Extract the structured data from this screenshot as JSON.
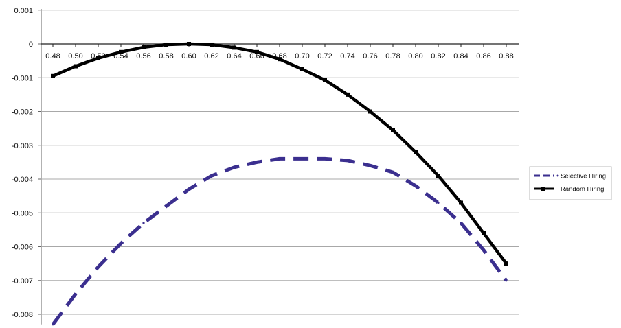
{
  "chart_data": {
    "type": "line",
    "title": "",
    "xlabel": "",
    "ylabel": "",
    "x": [
      0.48,
      0.5,
      0.52,
      0.54,
      0.56,
      0.58,
      0.6,
      0.62,
      0.64,
      0.66,
      0.68,
      0.7,
      0.72,
      0.74,
      0.76,
      0.78,
      0.8,
      0.82,
      0.84,
      0.86,
      0.88
    ],
    "x_tick_labels": [
      "0.48",
      "0.50",
      "0.52",
      "0.54",
      "0.56",
      "0.58",
      "0.60",
      "0.62",
      "0.64",
      "0.66",
      "0.68",
      "0.70",
      "0.72",
      "0.74",
      "0.76",
      "0.78",
      "0.80",
      "0.82",
      "0.84",
      "0.86",
      "0.88"
    ],
    "y_ticks": [
      0.001,
      0,
      -0.001,
      -0.002,
      -0.003,
      -0.004,
      -0.005,
      -0.006,
      -0.007,
      -0.008
    ],
    "y_tick_labels": [
      "0.001",
      "0",
      "-0.001",
      "-0.002",
      "-0.003",
      "-0.004",
      "-0.005",
      "-0.006",
      "-0.007",
      "-0.008"
    ],
    "ylim": [
      -0.0083,
      0.001
    ],
    "grid": "horizontal",
    "legend_position": "right",
    "series": [
      {
        "name": "Selective Hiring",
        "color": "#3b2f8f",
        "style": "dashed",
        "values": [
          -0.0083,
          -0.0074,
          -0.0066,
          -0.0059,
          -0.0053,
          -0.0048,
          -0.0043,
          -0.0039,
          -0.00365,
          -0.0035,
          -0.0034,
          -0.0034,
          -0.0034,
          -0.00345,
          -0.0036,
          -0.0038,
          -0.0042,
          -0.0047,
          -0.0053,
          -0.0061,
          -0.007
        ]
      },
      {
        "name": "Random Hiring",
        "color": "#000000",
        "style": "solid",
        "values": [
          -0.00095,
          -0.00066,
          -0.00042,
          -0.00024,
          -0.0001,
          -2e-05,
          0.0,
          -2e-05,
          -0.00011,
          -0.00024,
          -0.00045,
          -0.00075,
          -0.00107,
          -0.0015,
          -0.002,
          -0.00255,
          -0.0032,
          -0.0039,
          -0.0047,
          -0.0056,
          -0.0065
        ]
      }
    ]
  }
}
